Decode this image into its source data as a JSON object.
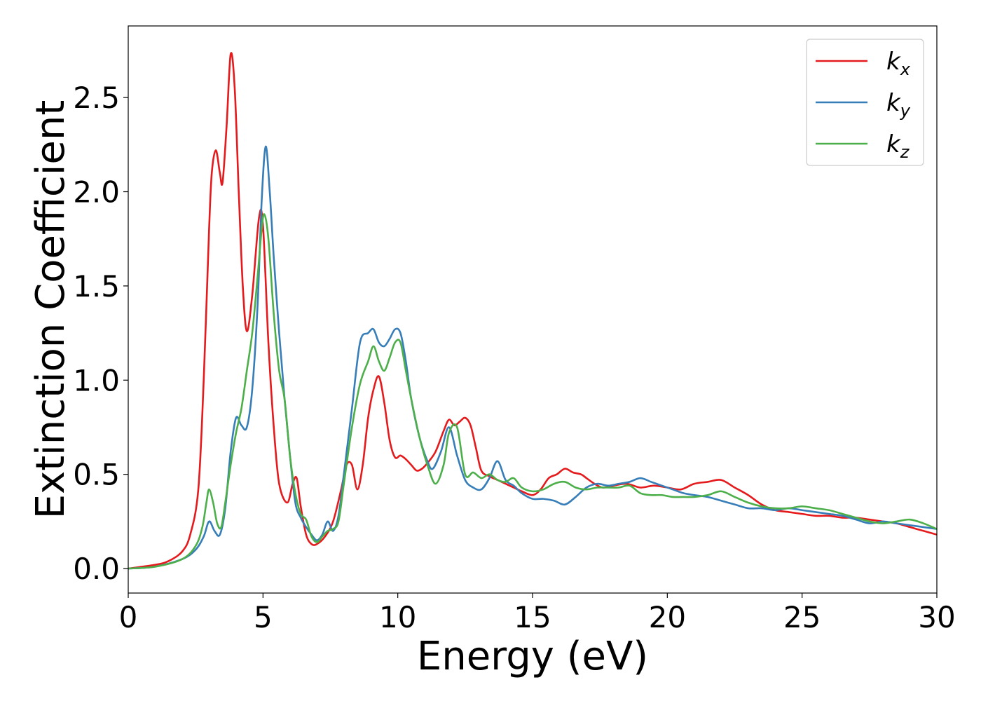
{
  "chart_data": {
    "type": "line",
    "title": "",
    "xlabel": "Energy (eV)",
    "ylabel": "Extinction Coefficient",
    "xlim": [
      0,
      30
    ],
    "ylim": [
      -0.13,
      2.88
    ],
    "xticks": [
      0,
      5,
      10,
      15,
      20,
      25,
      30
    ],
    "yticks": [
      0.0,
      0.5,
      1.0,
      1.5,
      2.0,
      2.5
    ],
    "xtick_labels": [
      "0",
      "5",
      "10",
      "15",
      "20",
      "25",
      "30"
    ],
    "ytick_labels": [
      "0.0",
      "0.5",
      "1.0",
      "1.5",
      "2.0",
      "2.5"
    ],
    "grid": false,
    "legend": "top-right",
    "series": [
      {
        "name": "k_x",
        "label_main": "k",
        "label_sub": "x",
        "color": "#e41a1c",
        "x": [
          0,
          1,
          1.5,
          2,
          2.3,
          2.6,
          2.8,
          3.0,
          3.1,
          3.25,
          3.4,
          3.5,
          3.65,
          3.8,
          3.95,
          4.1,
          4.25,
          4.4,
          4.6,
          4.85,
          5.0,
          5.2,
          5.4,
          5.6,
          5.9,
          6.1,
          6.25,
          6.4,
          6.6,
          6.8,
          7.0,
          7.3,
          7.6,
          7.9,
          8.1,
          8.3,
          8.5,
          8.7,
          8.9,
          9.1,
          9.3,
          9.5,
          9.7,
          9.9,
          10.1,
          10.3,
          10.5,
          10.7,
          10.9,
          11.1,
          11.4,
          11.7,
          11.9,
          12.1,
          12.3,
          12.5,
          12.7,
          12.9,
          13.1,
          13.4,
          13.7,
          14.0,
          14.3,
          14.6,
          15.0,
          15.3,
          15.6,
          15.9,
          16.2,
          16.5,
          16.8,
          17.0,
          17.3,
          17.6,
          18.0,
          18.5,
          19.0,
          19.5,
          20.0,
          20.5,
          21.0,
          21.5,
          22.0,
          22.5,
          23.0,
          23.5,
          24.0,
          24.5,
          25.0,
          25.5,
          26.0,
          26.5,
          27.0,
          27.5,
          28.0,
          28.5,
          29.0,
          29.5,
          30.0
        ],
        "y": [
          0,
          0.02,
          0.04,
          0.09,
          0.18,
          0.42,
          1.0,
          1.8,
          2.1,
          2.22,
          2.1,
          2.05,
          2.35,
          2.73,
          2.55,
          2.0,
          1.5,
          1.26,
          1.45,
          1.86,
          1.82,
          1.2,
          0.75,
          0.45,
          0.35,
          0.45,
          0.48,
          0.33,
          0.18,
          0.13,
          0.13,
          0.17,
          0.25,
          0.42,
          0.55,
          0.55,
          0.42,
          0.55,
          0.8,
          0.95,
          1.02,
          0.88,
          0.68,
          0.59,
          0.6,
          0.58,
          0.55,
          0.52,
          0.53,
          0.56,
          0.62,
          0.73,
          0.79,
          0.76,
          0.78,
          0.8,
          0.76,
          0.64,
          0.52,
          0.49,
          0.47,
          0.45,
          0.43,
          0.41,
          0.39,
          0.42,
          0.48,
          0.5,
          0.53,
          0.51,
          0.5,
          0.48,
          0.45,
          0.43,
          0.44,
          0.45,
          0.43,
          0.44,
          0.43,
          0.42,
          0.45,
          0.46,
          0.47,
          0.43,
          0.39,
          0.34,
          0.31,
          0.3,
          0.29,
          0.28,
          0.28,
          0.27,
          0.27,
          0.26,
          0.25,
          0.24,
          0.22,
          0.2,
          0.18
        ]
      },
      {
        "name": "k_y",
        "label_main": "k",
        "label_sub": "y",
        "color": "#377eb8",
        "x": [
          0,
          1,
          2,
          2.5,
          2.8,
          3.0,
          3.2,
          3.4,
          3.6,
          3.8,
          4.0,
          4.2,
          4.4,
          4.6,
          4.8,
          4.95,
          5.1,
          5.25,
          5.4,
          5.6,
          5.8,
          6.0,
          6.2,
          6.4,
          6.6,
          6.8,
          7.0,
          7.2,
          7.4,
          7.6,
          7.8,
          8.0,
          8.3,
          8.6,
          8.9,
          9.1,
          9.3,
          9.5,
          9.7,
          9.9,
          10.1,
          10.3,
          10.5,
          10.8,
          11.1,
          11.3,
          11.6,
          11.9,
          12.2,
          12.5,
          12.8,
          13.1,
          13.4,
          13.7,
          14.0,
          14.3,
          14.6,
          15.0,
          15.4,
          15.8,
          16.2,
          16.6,
          17.0,
          17.4,
          17.8,
          18.2,
          18.6,
          19.0,
          19.4,
          19.8,
          20.2,
          20.6,
          21.0,
          21.5,
          22.0,
          22.5,
          23.0,
          23.5,
          24.0,
          24.5,
          25.0,
          25.5,
          26.0,
          26.5,
          27.0,
          27.5,
          28.0,
          28.5,
          29.0,
          29.5,
          30.0
        ],
        "y": [
          0,
          0.01,
          0.05,
          0.1,
          0.17,
          0.25,
          0.2,
          0.18,
          0.32,
          0.62,
          0.8,
          0.76,
          0.75,
          0.95,
          1.4,
          1.95,
          2.24,
          2.0,
          1.65,
          1.25,
          0.9,
          0.6,
          0.35,
          0.27,
          0.22,
          0.18,
          0.15,
          0.18,
          0.25,
          0.2,
          0.28,
          0.5,
          0.85,
          1.2,
          1.25,
          1.27,
          1.2,
          1.18,
          1.22,
          1.27,
          1.25,
          1.1,
          0.9,
          0.7,
          0.57,
          0.53,
          0.62,
          0.75,
          0.6,
          0.47,
          0.43,
          0.42,
          0.48,
          0.57,
          0.47,
          0.44,
          0.4,
          0.37,
          0.37,
          0.36,
          0.34,
          0.38,
          0.43,
          0.45,
          0.44,
          0.45,
          0.46,
          0.48,
          0.46,
          0.44,
          0.42,
          0.4,
          0.39,
          0.38,
          0.36,
          0.34,
          0.32,
          0.32,
          0.31,
          0.32,
          0.31,
          0.3,
          0.29,
          0.28,
          0.26,
          0.24,
          0.25,
          0.24,
          0.23,
          0.22,
          0.21
        ]
      },
      {
        "name": "k_z",
        "label_main": "k",
        "label_sub": "z",
        "color": "#4daf4a",
        "x": [
          0,
          1,
          2,
          2.5,
          2.75,
          2.9,
          3.0,
          3.15,
          3.3,
          3.45,
          3.6,
          3.8,
          4.0,
          4.2,
          4.4,
          4.6,
          4.8,
          4.95,
          5.05,
          5.2,
          5.4,
          5.6,
          5.8,
          6.0,
          6.2,
          6.4,
          6.6,
          6.8,
          7.0,
          7.2,
          7.4,
          7.6,
          7.8,
          8.0,
          8.3,
          8.6,
          8.9,
          9.1,
          9.3,
          9.5,
          9.7,
          9.9,
          10.1,
          10.3,
          10.5,
          10.8,
          11.1,
          11.4,
          11.7,
          11.9,
          12.2,
          12.5,
          12.8,
          13.1,
          13.4,
          13.7,
          14.0,
          14.3,
          14.6,
          15.0,
          15.4,
          15.8,
          16.2,
          16.6,
          17.0,
          17.4,
          17.8,
          18.2,
          18.6,
          19.0,
          19.4,
          19.8,
          20.2,
          20.6,
          21.0,
          21.5,
          22.0,
          22.5,
          23.0,
          23.5,
          24.0,
          24.5,
          25.0,
          25.5,
          26.0,
          26.5,
          27.0,
          27.5,
          28.0,
          28.5,
          29.0,
          29.5,
          30.0
        ],
        "y": [
          0,
          0.01,
          0.05,
          0.12,
          0.22,
          0.35,
          0.42,
          0.35,
          0.24,
          0.22,
          0.35,
          0.55,
          0.72,
          0.85,
          1.05,
          1.25,
          1.55,
          1.8,
          1.88,
          1.75,
          1.35,
          1.05,
          0.9,
          0.6,
          0.4,
          0.29,
          0.26,
          0.17,
          0.14,
          0.17,
          0.2,
          0.21,
          0.25,
          0.45,
          0.75,
          0.98,
          1.1,
          1.18,
          1.1,
          1.05,
          1.12,
          1.2,
          1.2,
          1.05,
          0.9,
          0.7,
          0.55,
          0.45,
          0.55,
          0.72,
          0.75,
          0.5,
          0.51,
          0.48,
          0.5,
          0.47,
          0.46,
          0.48,
          0.43,
          0.41,
          0.42,
          0.45,
          0.46,
          0.43,
          0.42,
          0.43,
          0.43,
          0.43,
          0.44,
          0.4,
          0.39,
          0.39,
          0.38,
          0.38,
          0.38,
          0.39,
          0.41,
          0.38,
          0.35,
          0.33,
          0.32,
          0.32,
          0.33,
          0.32,
          0.31,
          0.29,
          0.27,
          0.25,
          0.24,
          0.25,
          0.26,
          0.24,
          0.21
        ]
      }
    ]
  }
}
